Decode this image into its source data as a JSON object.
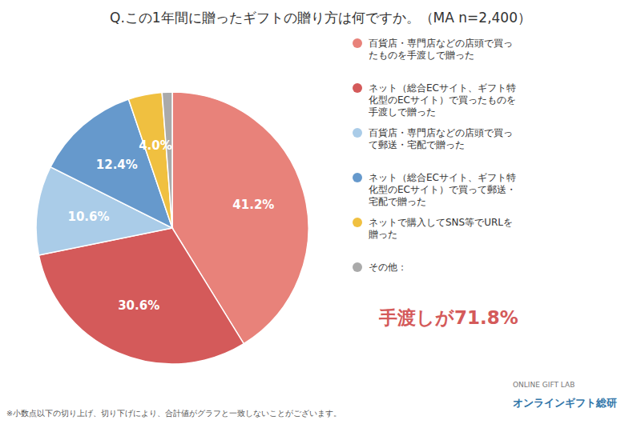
{
  "chart_data": {
    "type": "pie",
    "title": "Q.この1年間に贈ったギフトの贈り方は何ですか。（MA n=2,400）",
    "categories": [
      "百貨店・専門店などの店頭で買っ\nたものを手渡しで贈った",
      "ネット（総合ECサイト、ギフト特\n化型のECサイト）で買ったものを\n手渡しで贈った",
      "百貨店・専門店などの店頭で買っ\nて郵送・宅配で贈った",
      "ネット（総合ECサイト、ギフト特\n化型のECサイト）で買って郵送・\n宅配で贈った",
      "ネットで購入してSNS等でURLを\n贈った",
      "その他："
    ],
    "values": [
      41.2,
      30.6,
      10.6,
      12.4,
      4.0,
      1.2
    ],
    "value_labels": [
      "41.2%",
      "30.6%",
      "10.6%",
      "12.4%",
      "4.0%",
      null
    ],
    "colors": [
      "#E8827A",
      "#D45A5A",
      "#AACCE8",
      "#6699CC",
      "#F0C040",
      "#AAAAAA"
    ],
    "data_labels": true,
    "legend": "right",
    "annotations": [
      {
        "text": "手渡しが71.8%",
        "color": "#D45A5A"
      },
      {
        "text": "※小数点以下の切り上げ、切り下げにより、合計値がグラフと一致しないことがございます。"
      },
      {
        "text": "ONLINE GIFT LAB"
      },
      {
        "text": "オンラインギフト総研",
        "color": "#3377AA"
      }
    ]
  }
}
